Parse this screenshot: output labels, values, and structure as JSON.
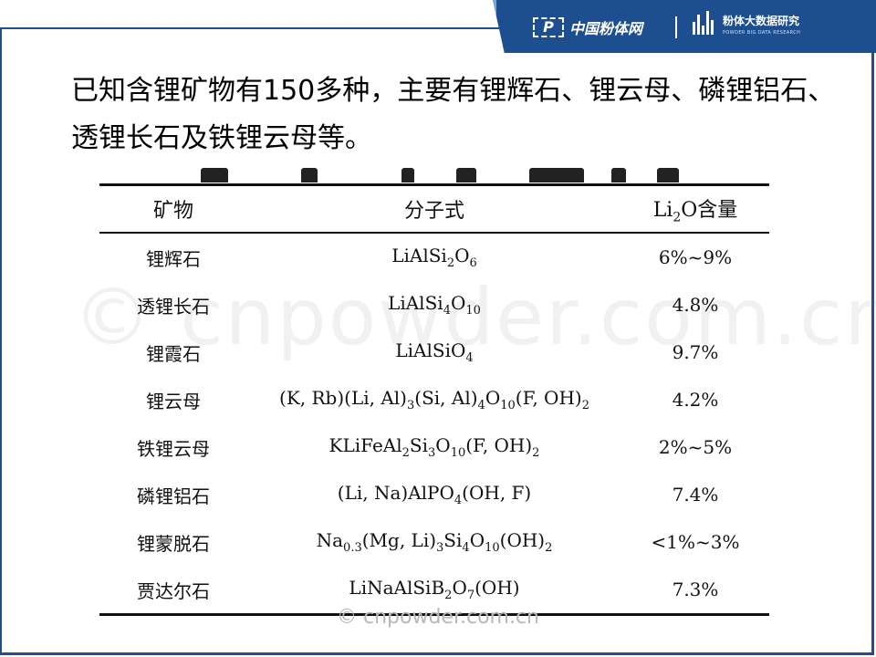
{
  "header": {
    "logo1_mark": "P",
    "logo1_text": "中国粉体网",
    "logo2_cn": "粉体大数据研究",
    "logo2_en": "POWDER BIG DATA RESEARCH",
    "brand_color": "#1d4f90"
  },
  "intro": {
    "text": "已知含锂矿物有150多种，主要有锂辉石、锂云母、磷锂铝石、透锂长石及铁锂云母等。"
  },
  "table": {
    "headers": [
      "矿物",
      "分子式",
      "Li2O含量"
    ],
    "rows": [
      {
        "mineral": "锂辉石",
        "formula": "LiAlSi2O6",
        "content": "6%~9%"
      },
      {
        "mineral": "透锂长石",
        "formula": "LiAlSi4O10",
        "content": "4.8%"
      },
      {
        "mineral": "锂霞石",
        "formula": "LiAlSiO4",
        "content": "9.7%"
      },
      {
        "mineral": "锂云母",
        "formula": "(K, Rb)(Li, Al)3(Si, Al)4O10(F, OH)2",
        "content": "4.2%"
      },
      {
        "mineral": "铁锂云母",
        "formula": "KLiFeAl2Si3O10(F, OH)2",
        "content": "2%~5%"
      },
      {
        "mineral": "磷锂铝石",
        "formula": "(Li, Na)AlPO4(OH, F)",
        "content": "7.4%"
      },
      {
        "mineral": "锂蒙脱石",
        "formula": "Na0.3(Mg, Li)3Si4O10(OH)2",
        "content": "<1%~3%"
      },
      {
        "mineral": "贾达尔石",
        "formula": "LiNaAlSiB2O7(OH)",
        "content": "7.3%"
      }
    ]
  },
  "watermark": "© cnpowder.com.cn",
  "footer_watermark": "© cnpowder.com.cn"
}
